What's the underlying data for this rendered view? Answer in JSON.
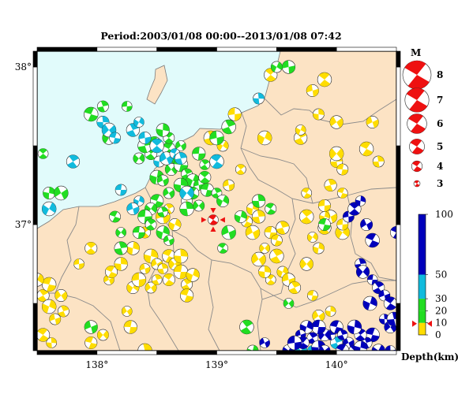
{
  "title": "Period:2003/01/08 00:00--2013/01/08 07:42",
  "map": {
    "lat_labels": [
      "38°",
      "37°"
    ],
    "lon_labels": [
      "138°",
      "139°",
      "140°"
    ],
    "lon_range": [
      137.5,
      140.5
    ],
    "lat_range": [
      36.2,
      38.1
    ],
    "colors": {
      "sea": "#e1fbfb",
      "land": "#fce3c4",
      "border": "#8a8a8a"
    },
    "mainshock": {
      "lon": 138.97,
      "lat": 37.03,
      "color": "#ee1111",
      "marker": "red-triangles"
    }
  },
  "magnitude_legend": {
    "heading": "M",
    "items": [
      {
        "label": "8",
        "m": 8
      },
      {
        "label": "7",
        "m": 7
      },
      {
        "label": "6",
        "m": 6
      },
      {
        "label": "5",
        "m": 5
      },
      {
        "label": "4",
        "m": 4
      },
      {
        "label": "3",
        "m": 3
      }
    ]
  },
  "depth_scale": {
    "label": "Depth(km)",
    "ticks": [
      "100",
      "50",
      "30",
      "20",
      "10",
      "0"
    ],
    "bands": [
      {
        "from": 0,
        "to": 10,
        "color": "#ffdd00"
      },
      {
        "from": 10,
        "to": 20,
        "color": "#22dd22"
      },
      {
        "from": 20,
        "to": 30,
        "color": "#22dd22"
      },
      {
        "from": 30,
        "to": 50,
        "color": "#11bbdd"
      },
      {
        "from": 50,
        "to": 100,
        "color": "#0000bb"
      }
    ]
  },
  "events": {
    "yellow": [
      [
        137.55,
        36.55
      ],
      [
        137.6,
        36.48
      ],
      [
        137.65,
        36.4
      ],
      [
        137.55,
        36.3
      ],
      [
        137.62,
        36.25
      ],
      [
        137.7,
        36.55
      ],
      [
        137.6,
        36.62
      ],
      [
        137.72,
        36.45
      ],
      [
        137.5,
        36.65
      ],
      [
        137.85,
        36.75
      ],
      [
        137.95,
        36.85
      ],
      [
        138.45,
        36.8
      ],
      [
        138.5,
        36.75
      ],
      [
        138.6,
        36.8
      ],
      [
        138.55,
        36.72
      ],
      [
        138.65,
        36.75
      ],
      [
        138.7,
        36.7
      ],
      [
        138.75,
        36.62
      ],
      [
        138.8,
        36.68
      ],
      [
        138.4,
        36.72
      ],
      [
        138.6,
        36.65
      ],
      [
        138.7,
        36.8
      ],
      [
        138.45,
        36.6
      ],
      [
        138.75,
        36.55
      ],
      [
        138.5,
        36.65
      ],
      [
        138.3,
        36.6
      ],
      [
        138.35,
        36.65
      ],
      [
        138.4,
        36.95
      ],
      [
        138.3,
        36.85
      ],
      [
        138.1,
        36.65
      ],
      [
        138.12,
        36.7
      ],
      [
        138.4,
        36.2
      ],
      [
        138.05,
        36.3
      ],
      [
        138.28,
        36.35
      ],
      [
        138.6,
        37.1
      ],
      [
        138.65,
        37.0
      ],
      [
        138.55,
        37.05
      ],
      [
        138.75,
        37.15
      ],
      [
        138.2,
        36.75
      ],
      [
        138.25,
        36.45
      ],
      [
        137.95,
        36.25
      ],
      [
        138.95,
        37.55
      ],
      [
        139.05,
        37.5
      ],
      [
        139.15,
        37.7
      ],
      [
        139.2,
        37.35
      ],
      [
        139.3,
        37.1
      ],
      [
        139.3,
        36.95
      ],
      [
        139.25,
        37.02
      ],
      [
        139.35,
        37.05
      ],
      [
        139.4,
        36.85
      ],
      [
        139.45,
        36.95
      ],
      [
        139.5,
        36.8
      ],
      [
        139.55,
        36.7
      ],
      [
        139.6,
        36.65
      ],
      [
        139.45,
        36.65
      ],
      [
        139.4,
        36.7
      ],
      [
        139.35,
        36.78
      ],
      [
        139.5,
        36.9
      ],
      [
        139.55,
        36.98
      ],
      [
        139.8,
        36.92
      ],
      [
        139.9,
        37.12
      ],
      [
        139.75,
        37.05
      ],
      [
        139.85,
        36.85
      ],
      [
        139.95,
        37.05
      ],
      [
        139.75,
        37.2
      ],
      [
        140.0,
        37.4
      ],
      [
        140.0,
        37.45
      ],
      [
        140.05,
        37.35
      ],
      [
        139.7,
        37.55
      ],
      [
        139.7,
        37.6
      ],
      [
        139.8,
        37.85
      ],
      [
        139.9,
        37.92
      ],
      [
        139.85,
        37.7
      ],
      [
        140.0,
        37.65
      ],
      [
        140.05,
        37.2
      ],
      [
        139.95,
        37.25
      ],
      [
        140.05,
        36.95
      ],
      [
        140.05,
        37.0
      ],
      [
        139.9,
        36.98
      ],
      [
        139.9,
        37.05
      ],
      [
        140.3,
        37.65
      ],
      [
        140.25,
        37.48
      ],
      [
        140.35,
        37.4
      ],
      [
        139.75,
        36.75
      ],
      [
        139.8,
        36.55
      ],
      [
        139.65,
        36.6
      ],
      [
        139.4,
        37.55
      ],
      [
        139.1,
        37.25
      ],
      [
        139.45,
        37.95
      ],
      [
        139.95,
        36.45
      ],
      [
        139.85,
        36.42
      ]
    ],
    "green": [
      [
        137.95,
        37.7
      ],
      [
        138.05,
        37.75
      ],
      [
        138.1,
        37.55
      ],
      [
        138.25,
        37.75
      ],
      [
        138.45,
        37.45
      ],
      [
        138.5,
        37.3
      ],
      [
        138.55,
        37.28
      ],
      [
        138.6,
        37.48
      ],
      [
        138.65,
        37.42
      ],
      [
        138.62,
        37.35
      ],
      [
        138.7,
        37.38
      ],
      [
        138.75,
        37.32
      ],
      [
        138.8,
        37.28
      ],
      [
        138.85,
        37.25
      ],
      [
        138.9,
        37.3
      ],
      [
        138.7,
        37.25
      ],
      [
        138.6,
        37.2
      ],
      [
        138.5,
        37.15
      ],
      [
        138.55,
        37.08
      ],
      [
        138.45,
        37.1
      ],
      [
        138.4,
        37.05
      ],
      [
        138.45,
        37.0
      ],
      [
        138.55,
        36.95
      ],
      [
        138.6,
        36.9
      ],
      [
        138.8,
        37.2
      ],
      [
        138.75,
        37.1
      ],
      [
        138.85,
        37.12
      ],
      [
        138.92,
        37.22
      ],
      [
        139.0,
        37.2
      ],
      [
        139.05,
        37.15
      ],
      [
        139.0,
        37.55
      ],
      [
        138.6,
        37.55
      ],
      [
        138.55,
        37.6
      ],
      [
        138.7,
        37.5
      ],
      [
        138.48,
        37.52
      ],
      [
        138.4,
        37.5
      ],
      [
        138.35,
        37.42
      ],
      [
        138.85,
        37.45
      ],
      [
        138.9,
        37.38
      ],
      [
        139.2,
        37.05
      ],
      [
        139.1,
        36.95
      ],
      [
        139.45,
        37.1
      ],
      [
        139.35,
        37.15
      ],
      [
        139.6,
        36.5
      ],
      [
        139.9,
        37.0
      ],
      [
        139.1,
        37.62
      ],
      [
        139.5,
        38.0
      ],
      [
        139.6,
        38.0
      ],
      [
        137.55,
        37.45
      ],
      [
        137.6,
        37.2
      ],
      [
        137.7,
        37.2
      ],
      [
        138.15,
        37.05
      ],
      [
        138.2,
        36.85
      ],
      [
        138.2,
        36.95
      ],
      [
        138.35,
        36.95
      ],
      [
        139.25,
        36.35
      ],
      [
        139.3,
        36.2
      ],
      [
        137.95,
        36.35
      ],
      [
        139.05,
        36.85
      ]
    ],
    "cyan": [
      [
        138.05,
        37.65
      ],
      [
        138.1,
        37.6
      ],
      [
        138.15,
        37.55
      ],
      [
        138.3,
        37.6
      ],
      [
        138.35,
        37.65
      ],
      [
        138.4,
        37.55
      ],
      [
        138.5,
        37.5
      ],
      [
        138.52,
        37.4
      ],
      [
        138.58,
        37.42
      ],
      [
        138.65,
        37.45
      ],
      [
        138.7,
        37.42
      ],
      [
        138.75,
        37.2
      ],
      [
        138.2,
        37.22
      ],
      [
        137.8,
        37.4
      ],
      [
        138.35,
        37.15
      ],
      [
        138.3,
        37.1
      ],
      [
        139.0,
        37.4
      ],
      [
        139.35,
        37.8
      ],
      [
        139.7,
        36.2
      ],
      [
        139.8,
        36.2
      ],
      [
        140.0,
        36.25
      ],
      [
        137.6,
        37.1
      ]
    ],
    "blue": [
      [
        140.1,
        37.05
      ],
      [
        140.15,
        37.1
      ],
      [
        140.2,
        37.15
      ],
      [
        140.25,
        37.0
      ],
      [
        140.3,
        36.9
      ],
      [
        140.2,
        36.75
      ],
      [
        140.22,
        36.7
      ],
      [
        140.3,
        36.65
      ],
      [
        140.35,
        36.6
      ],
      [
        140.28,
        36.5
      ],
      [
        140.4,
        36.55
      ],
      [
        140.45,
        36.5
      ],
      [
        140.4,
        36.4
      ],
      [
        140.45,
        36.35
      ],
      [
        140.3,
        36.3
      ],
      [
        140.25,
        36.25
      ],
      [
        140.35,
        36.2
      ],
      [
        140.45,
        36.2
      ],
      [
        140.2,
        36.3
      ],
      [
        140.15,
        36.35
      ],
      [
        140.1,
        36.25
      ],
      [
        140.05,
        36.2
      ],
      [
        139.95,
        36.3
      ],
      [
        139.9,
        36.3
      ],
      [
        139.85,
        36.35
      ],
      [
        139.8,
        36.28
      ],
      [
        139.75,
        36.35
      ],
      [
        139.7,
        36.3
      ],
      [
        139.72,
        36.25
      ],
      [
        139.85,
        36.22
      ],
      [
        139.9,
        36.2
      ],
      [
        140.0,
        36.35
      ],
      [
        140.05,
        36.3
      ],
      [
        139.6,
        36.2
      ],
      [
        139.65,
        36.25
      ],
      [
        140.15,
        36.2
      ],
      [
        140.2,
        36.22
      ],
      [
        139.4,
        36.25
      ],
      [
        140.5,
        36.95
      ],
      [
        140.48,
        36.4
      ]
    ]
  }
}
